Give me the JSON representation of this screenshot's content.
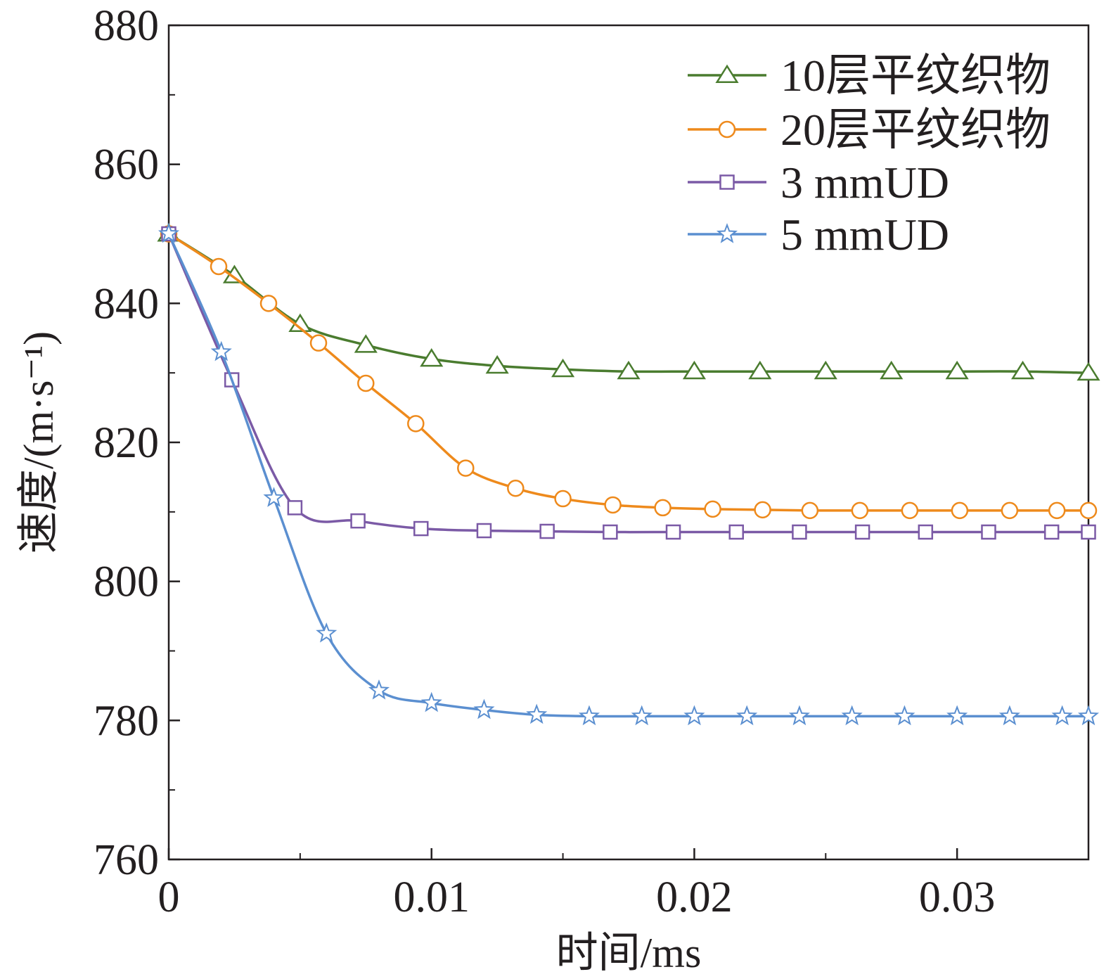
{
  "chart_data": {
    "type": "line",
    "title": "",
    "xlabel": "时间/ms",
    "ylabel": "速度/(m·s⁻¹)",
    "xlim": [
      0,
      0.035
    ],
    "ylim": [
      760,
      880
    ],
    "xticks": [
      0,
      0.01,
      0.02,
      0.03
    ],
    "xtick_labels": [
      "0",
      "0.01",
      "0.02",
      "0.03"
    ],
    "yticks": [
      760,
      780,
      800,
      820,
      840,
      860,
      880
    ],
    "ytick_labels": [
      "760",
      "780",
      "800",
      "820",
      "840",
      "860",
      "880"
    ],
    "grid": false,
    "legend_position": "top-right",
    "series": [
      {
        "name": "10层平纹织物",
        "color": "#4a7c2f",
        "marker": "triangle",
        "x": [
          0,
          0.0025,
          0.005,
          0.0075,
          0.01,
          0.0125,
          0.015,
          0.0175,
          0.02,
          0.0225,
          0.025,
          0.0275,
          0.03,
          0.0325,
          0.035
        ],
        "y": [
          850,
          844,
          837,
          834,
          832,
          831,
          830.5,
          830.2,
          830.2,
          830.2,
          830.2,
          830.2,
          830.2,
          830.2,
          830
        ]
      },
      {
        "name": "20层平纹织物",
        "color": "#ee8a1c",
        "marker": "circle",
        "x": [
          0,
          0.0019,
          0.0038,
          0.0057,
          0.0075,
          0.0094,
          0.0113,
          0.0132,
          0.015,
          0.0169,
          0.0188,
          0.0207,
          0.0226,
          0.0244,
          0.0263,
          0.0282,
          0.0301,
          0.032,
          0.0338,
          0.035
        ],
        "y": [
          850,
          845.3,
          840,
          834.3,
          828.5,
          822.7,
          816.3,
          813.4,
          811.9,
          811,
          810.6,
          810.4,
          810.3,
          810.2,
          810.2,
          810.2,
          810.2,
          810.2,
          810.2,
          810.2
        ]
      },
      {
        "name": "3 mmUD",
        "color": "#7b5aa6",
        "marker": "square",
        "x": [
          0,
          0.0024,
          0.0048,
          0.0072,
          0.0096,
          0.012,
          0.0144,
          0.0168,
          0.0192,
          0.0216,
          0.024,
          0.0264,
          0.0288,
          0.0312,
          0.0336,
          0.035
        ],
        "y": [
          850,
          829,
          810.6,
          808.7,
          807.6,
          807.3,
          807.2,
          807.1,
          807.1,
          807.1,
          807.1,
          807.1,
          807.1,
          807.1,
          807.1,
          807.1
        ]
      },
      {
        "name": "5 mmUD",
        "color": "#5b8fd0",
        "marker": "star",
        "x": [
          0,
          0.002,
          0.004,
          0.006,
          0.008,
          0.01,
          0.012,
          0.014,
          0.016,
          0.018,
          0.02,
          0.022,
          0.024,
          0.026,
          0.028,
          0.03,
          0.032,
          0.034,
          0.035
        ],
        "y": [
          850,
          833,
          812,
          792.5,
          784.3,
          782.5,
          781.5,
          780.8,
          780.6,
          780.6,
          780.6,
          780.6,
          780.6,
          780.6,
          780.6,
          780.6,
          780.6,
          780.6,
          780.6
        ]
      }
    ]
  }
}
